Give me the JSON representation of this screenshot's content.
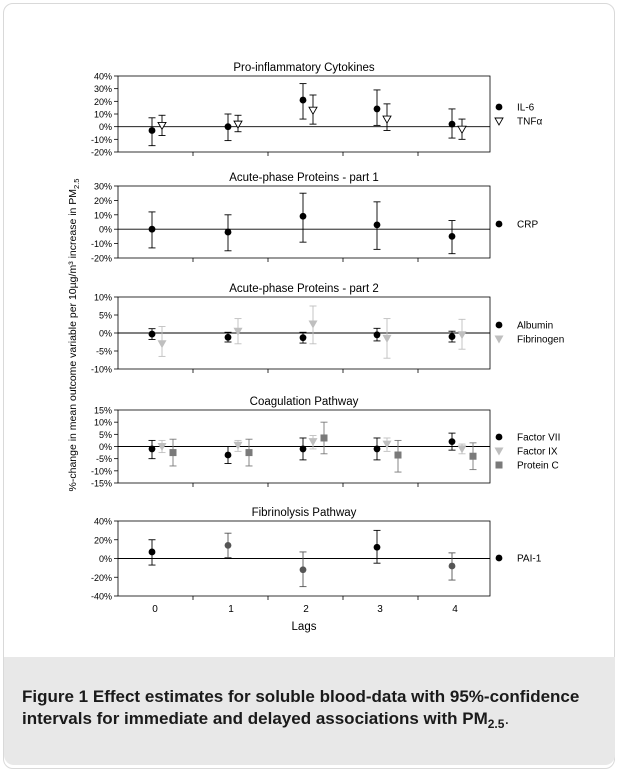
{
  "colors": {
    "black": "#000000",
    "light_gray": "#bfbfbf",
    "dark_gray": "#555555",
    "mid_gray": "#7a7a7a"
  },
  "figure": {
    "y_axis_label": "%-change in mean outcome variable per 10µg/m³ increase in PM",
    "y_axis_label_sub": "2.5",
    "x_axis_label": "Lags",
    "x_ticks": [
      "0",
      "1",
      "2",
      "3",
      "4"
    ]
  },
  "caption": {
    "label": "Figure 1",
    "text_bold": "Effect estimates for soluble blood-data with 95%-confidence intervals for immediate and delayed associations with PM",
    "text_sub": "2.5",
    "text_end": "."
  },
  "chart_data": [
    {
      "type": "scatter",
      "title": "Pro-inflammatory Cytokines",
      "ylim": [
        -20,
        40
      ],
      "y_ticks": [
        "40%",
        "30%",
        "20%",
        "10%",
        "0%",
        "-10%",
        "-20%"
      ],
      "y_tick_values": [
        40,
        30,
        20,
        10,
        0,
        -10,
        -20
      ],
      "x": [
        0,
        1,
        2,
        3,
        4
      ],
      "series": [
        {
          "name": "IL-6",
          "marker": "circle",
          "color": "#000000",
          "values": [
            -3,
            0,
            21,
            14,
            2
          ],
          "lower": [
            -15,
            -11,
            6,
            1,
            -9
          ],
          "upper": [
            7,
            10,
            34,
            29,
            14
          ]
        },
        {
          "name": "TNFα",
          "marker": "triangle-open",
          "color": "#000000",
          "values": [
            1,
            2,
            13,
            6,
            -2
          ],
          "lower": [
            -7,
            -4,
            2,
            -3,
            -10
          ],
          "upper": [
            9,
            9,
            25,
            18,
            6
          ]
        }
      ]
    },
    {
      "type": "scatter",
      "title": "Acute-phase Proteins - part 1",
      "ylim": [
        -20,
        30
      ],
      "y_ticks": [
        "30%",
        "20%",
        "10%",
        "0%",
        "-10%",
        "-20%"
      ],
      "y_tick_values": [
        30,
        20,
        10,
        0,
        -10,
        -20
      ],
      "x": [
        0,
        1,
        2,
        3,
        4
      ],
      "series": [
        {
          "name": "CRP",
          "marker": "circle",
          "color": "#000000",
          "values": [
            0,
            -2,
            9,
            3,
            -5
          ],
          "lower": [
            -13,
            -15,
            -9,
            -14,
            -17
          ],
          "upper": [
            12,
            10,
            25,
            19,
            6
          ]
        }
      ]
    },
    {
      "type": "scatter",
      "title": "Acute-phase Proteins - part 2",
      "ylim": [
        -10,
        10
      ],
      "y_ticks": [
        "10%",
        "5%",
        "0%",
        "-5%",
        "-10%"
      ],
      "y_tick_values": [
        10,
        5,
        0,
        -5,
        -10
      ],
      "x": [
        0,
        1,
        2,
        3,
        4
      ],
      "series": [
        {
          "name": "Albumin",
          "marker": "circle",
          "color": "#000000",
          "values": [
            -0.3,
            -1.2,
            -1.3,
            -0.5,
            -1.0
          ],
          "lower": [
            -1.8,
            -2.5,
            -2.8,
            -2.2,
            -2.5
          ],
          "upper": [
            1.2,
            0.2,
            0.2,
            1.3,
            0.5
          ]
        },
        {
          "name": "Fibrinogen",
          "marker": "triangle",
          "color": "#bfbfbf",
          "values": [
            -3,
            0.5,
            2.5,
            -1.5,
            -0.5
          ],
          "lower": [
            -6.5,
            -3,
            -3,
            -7,
            -4.5
          ],
          "upper": [
            1.8,
            4,
            7.5,
            4,
            3.8
          ]
        }
      ]
    },
    {
      "type": "scatter",
      "title": "Coagulation Pathway",
      "ylim": [
        -15,
        15
      ],
      "y_ticks": [
        "15%",
        "10%",
        "5%",
        "0%",
        "-5%",
        "-10%",
        "-15%"
      ],
      "y_tick_values": [
        15,
        10,
        5,
        0,
        -5,
        -10,
        -15
      ],
      "x": [
        0,
        1,
        2,
        3,
        4
      ],
      "series": [
        {
          "name": "Factor VII",
          "marker": "circle",
          "color": "#000000",
          "values": [
            -1,
            -3.5,
            -1,
            -1,
            2
          ],
          "lower": [
            -5,
            -7,
            -5.5,
            -5.5,
            -1.5
          ],
          "upper": [
            2.5,
            0,
            3.5,
            3.5,
            5.5
          ]
        },
        {
          "name": "Factor IX",
          "marker": "triangle",
          "color": "#bfbfbf",
          "values": [
            0,
            0.5,
            2,
            1,
            -1
          ],
          "lower": [
            -2.5,
            -2,
            -1,
            -2,
            -3
          ],
          "upper": [
            2.5,
            2.5,
            4.5,
            3.5,
            1
          ]
        },
        {
          "name": "Protein C",
          "marker": "square",
          "color": "#7a7a7a",
          "values": [
            -2.5,
            -2.5,
            3.5,
            -3.5,
            -4
          ],
          "lower": [
            -8,
            -8,
            -3,
            -10.5,
            -9.5
          ],
          "upper": [
            3,
            3,
            10,
            2.5,
            1.5
          ]
        }
      ]
    },
    {
      "type": "scatter",
      "title": "Fibrinolysis Pathway",
      "ylim": [
        -40,
        40
      ],
      "y_ticks": [
        "40%",
        "20%",
        "0%",
        "-20%",
        "-40%"
      ],
      "y_tick_values": [
        40,
        20,
        0,
        -20,
        -40
      ],
      "x": [
        0,
        1,
        2,
        3,
        4
      ],
      "series": [
        {
          "name": "PAI-1",
          "marker": "circle",
          "color": "#000000",
          "values": [
            7,
            14,
            -12,
            12,
            -8
          ],
          "lower": [
            -7,
            1,
            -30,
            -5,
            -23
          ],
          "upper": [
            20,
            27,
            7,
            30,
            6
          ],
          "point_colors": [
            "#000000",
            "#555555",
            "#555555",
            "#000000",
            "#555555"
          ]
        }
      ]
    }
  ]
}
